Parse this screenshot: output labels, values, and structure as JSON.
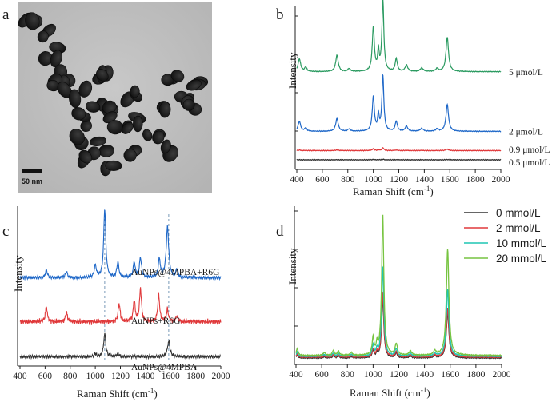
{
  "figure_labels": {
    "a": "a",
    "b": "b",
    "c": "c",
    "d": "d"
  },
  "panel_a": {
    "scale_bar_label": "50 nm",
    "image_kind": "TEM micrograph of AuNPs"
  },
  "colors": {
    "black": "#333333",
    "red": "#e0393b",
    "blue": "#1f68c8",
    "green": "#2a9a60",
    "cyan": "#1fc6b4",
    "lime": "#77c441"
  },
  "chart_data": [
    {
      "panel": "b",
      "type": "line",
      "xlabel": "Raman Shift (cm",
      "xlabel_sup": "-1",
      "ylabel": "Intensity",
      "xlim": [
        400,
        2000
      ],
      "x_ticks": [
        400,
        600,
        800,
        1000,
        1200,
        1400,
        1600,
        1800,
        2000
      ],
      "peaks": [
        {
          "x": 420,
          "h": 0.18,
          "w": 12
        },
        {
          "x": 470,
          "h": 0.06,
          "w": 10
        },
        {
          "x": 715,
          "h": 0.23,
          "w": 12
        },
        {
          "x": 810,
          "h": 0.04,
          "w": 12
        },
        {
          "x": 1000,
          "h": 0.62,
          "w": 10
        },
        {
          "x": 1040,
          "h": 0.28,
          "w": 7
        },
        {
          "x": 1075,
          "h": 1.0,
          "w": 9
        },
        {
          "x": 1180,
          "h": 0.18,
          "w": 10
        },
        {
          "x": 1260,
          "h": 0.09,
          "w": 12
        },
        {
          "x": 1380,
          "h": 0.05,
          "w": 14
        },
        {
          "x": 1500,
          "h": 0.04,
          "w": 12
        },
        {
          "x": 1580,
          "h": 0.48,
          "w": 12
        }
      ],
      "series": [
        {
          "name": "5 μmol/L",
          "color": "#2a9a60",
          "baseline": 0.62,
          "scale": 0.5
        },
        {
          "name": "2 μmol/L",
          "color": "#1f68c8",
          "baseline": 0.2,
          "scale": 0.39
        },
        {
          "name": "0.9 μmol/L",
          "color": "#e0393b",
          "baseline": 0.065,
          "scale": 0.02
        },
        {
          "name": "0.5 μmol/L",
          "color": "#333333",
          "baseline": 0.0,
          "scale": 0.004
        }
      ]
    },
    {
      "panel": "c",
      "type": "line",
      "xlabel": "Raman Shift (cm",
      "xlabel_sup": "-1",
      "ylabel": "Intensity",
      "xlim": [
        400,
        2000
      ],
      "x_ticks": [
        400,
        600,
        800,
        1000,
        1200,
        1400,
        1600,
        1800,
        2000
      ],
      "reference_lines_x": [
        1075,
        1585
      ],
      "series": [
        {
          "name": "AuNPs@4MPBA+R6G",
          "color": "#1f68c8",
          "baseline": 0.55,
          "peaks": [
            {
              "x": 610,
              "h": 0.05,
              "w": 10
            },
            {
              "x": 770,
              "h": 0.04,
              "w": 10
            },
            {
              "x": 1000,
              "h": 0.08,
              "w": 10
            },
            {
              "x": 1075,
              "h": 0.45,
              "w": 10
            },
            {
              "x": 1180,
              "h": 0.1,
              "w": 10
            },
            {
              "x": 1310,
              "h": 0.1,
              "w": 10
            },
            {
              "x": 1360,
              "h": 0.13,
              "w": 10
            },
            {
              "x": 1510,
              "h": 0.12,
              "w": 10
            },
            {
              "x": 1575,
              "h": 0.33,
              "w": 12
            },
            {
              "x": 1650,
              "h": 0.05,
              "w": 10
            }
          ]
        },
        {
          "name": "AuNPs+R6G",
          "color": "#e0393b",
          "baseline": 0.26,
          "peaks": [
            {
              "x": 610,
              "h": 0.1,
              "w": 9
            },
            {
              "x": 770,
              "h": 0.06,
              "w": 9
            },
            {
              "x": 1190,
              "h": 0.12,
              "w": 9
            },
            {
              "x": 1310,
              "h": 0.14,
              "w": 9
            },
            {
              "x": 1360,
              "h": 0.22,
              "w": 9
            },
            {
              "x": 1505,
              "h": 0.18,
              "w": 9
            },
            {
              "x": 1575,
              "h": 0.08,
              "w": 9
            },
            {
              "x": 1650,
              "h": 0.04,
              "w": 9
            }
          ]
        },
        {
          "name": "AuNPs@4MPBA",
          "color": "#333333",
          "baseline": 0.03,
          "peaks": [
            {
              "x": 1000,
              "h": 0.02,
              "w": 8
            },
            {
              "x": 1075,
              "h": 0.15,
              "w": 10
            },
            {
              "x": 1180,
              "h": 0.02,
              "w": 10
            },
            {
              "x": 1585,
              "h": 0.1,
              "w": 12
            }
          ]
        }
      ]
    },
    {
      "panel": "d",
      "type": "line",
      "xlabel": "Raman Shift (cm",
      "xlabel_sup": "-1",
      "ylabel": "Intensity",
      "xlim": [
        400,
        2000
      ],
      "x_ticks": [
        400,
        600,
        800,
        1000,
        1200,
        1400,
        1600,
        1800,
        2000
      ],
      "legend_position": "top-right",
      "peaks": [
        {
          "x": 410,
          "h": 0.05,
          "w": 8
        },
        {
          "x": 620,
          "h": 0.02,
          "w": 10
        },
        {
          "x": 690,
          "h": 0.035,
          "w": 9
        },
        {
          "x": 730,
          "h": 0.03,
          "w": 9
        },
        {
          "x": 830,
          "h": 0.02,
          "w": 10
        },
        {
          "x": 1000,
          "h": 0.12,
          "w": 9
        },
        {
          "x": 1030,
          "h": 0.07,
          "w": 7
        },
        {
          "x": 1075,
          "h": 1.0,
          "w": 10
        },
        {
          "x": 1180,
          "h": 0.08,
          "w": 10
        },
        {
          "x": 1290,
          "h": 0.03,
          "w": 12
        },
        {
          "x": 1480,
          "h": 0.03,
          "w": 12
        },
        {
          "x": 1580,
          "h": 0.75,
          "w": 12
        }
      ],
      "series": [
        {
          "name": "0 mmol/L",
          "color": "#333333",
          "scale": 0.42
        },
        {
          "name": "2 mmol/L",
          "color": "#e0393b",
          "scale": 0.45
        },
        {
          "name": "10 mmol/L",
          "color": "#1fc6b4",
          "scale": 0.62
        },
        {
          "name": "20 mmol/L",
          "color": "#77c441",
          "scale": 0.98
        }
      ]
    }
  ]
}
